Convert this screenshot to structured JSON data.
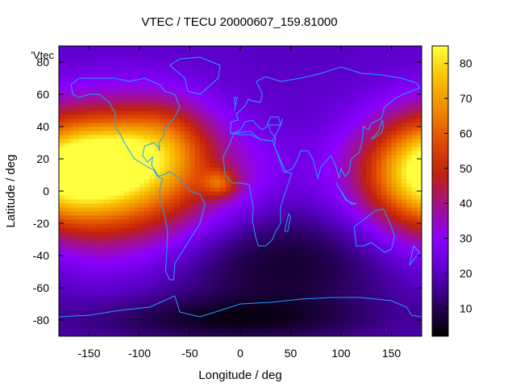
{
  "chart_data": {
    "type": "heatmap",
    "title": "VTEC / TECU 20000607_159.81000",
    "xlabel": "Longitude / deg",
    "ylabel": "Latitude / deg",
    "series_label": "'Vtec",
    "xlim": [
      -180,
      180
    ],
    "ylim": [
      -90,
      90
    ],
    "xticks": [
      -150,
      -100,
      -50,
      0,
      50,
      100,
      150
    ],
    "yticks": [
      -80,
      -60,
      -40,
      -20,
      0,
      20,
      40,
      60,
      80
    ],
    "colorbar": {
      "range": [
        2,
        85
      ],
      "ticks": [
        10,
        20,
        30,
        40,
        50,
        60,
        70,
        80
      ],
      "palette": [
        "#000000",
        "#2a0060",
        "#5a00c8",
        "#8a00ff",
        "#a01090",
        "#c02010",
        "#e04a00",
        "#f08800",
        "#f8c000",
        "#ffff40"
      ]
    },
    "field": {
      "background": 20,
      "blobs": [
        {
          "lon": -125,
          "lat": 10,
          "slon": 70,
          "slat": 30,
          "amp": 55
        },
        {
          "lon": -130,
          "lat": 20,
          "slon": 30,
          "slat": 15,
          "amp": 18
        },
        {
          "lon": -75,
          "lat": 30,
          "slon": 30,
          "slat": 18,
          "amp": 18
        },
        {
          "lon": 175,
          "lat": 12,
          "slon": 38,
          "slat": 22,
          "amp": 30
        },
        {
          "lon": -20,
          "lat": 5,
          "slon": 12,
          "slat": 6,
          "amp": 22
        },
        {
          "lon": 40,
          "lat": -45,
          "slon": 80,
          "slat": 25,
          "amp": -14
        },
        {
          "lon": -20,
          "lat": -80,
          "slon": 100,
          "slat": 10,
          "amp": -12
        },
        {
          "lon": 20,
          "lat": 10,
          "slon": 60,
          "slat": 20,
          "amp": 5
        }
      ],
      "grid": {
        "dlon": 5,
        "dlat": 2.5
      }
    }
  }
}
